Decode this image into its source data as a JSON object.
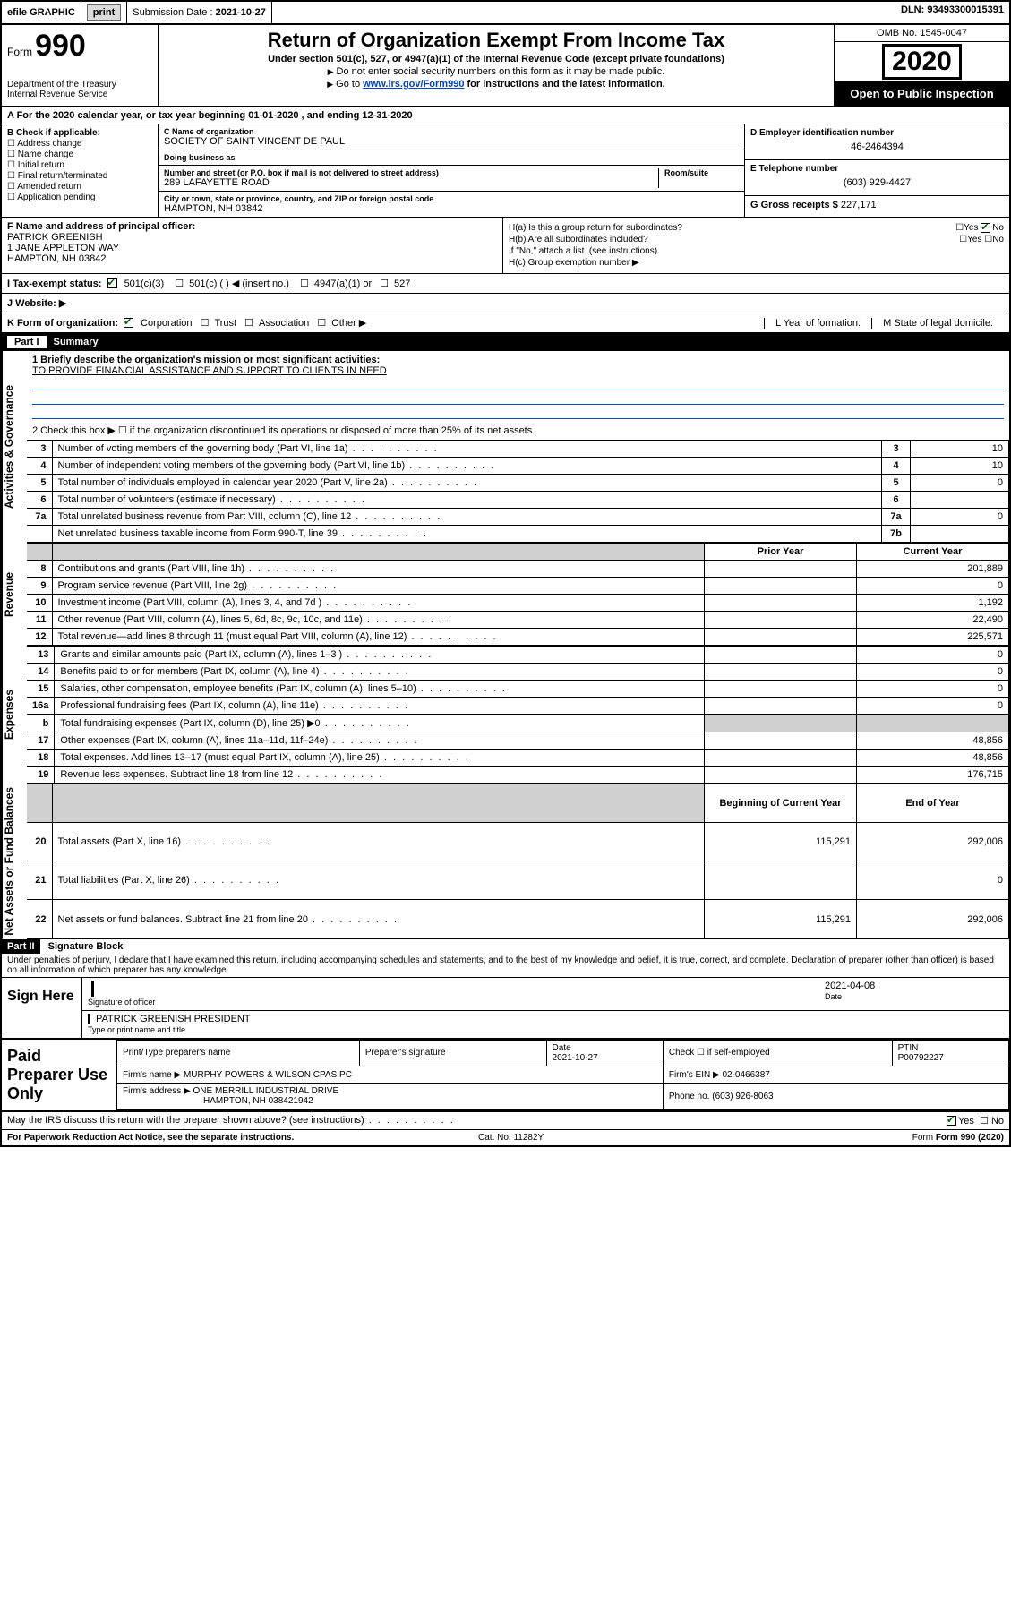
{
  "topbar": {
    "efile": "efile GRAPHIC",
    "print": "print",
    "subdate_lbl": "Submission Date :",
    "subdate": "2021-10-27",
    "dln_lbl": "DLN:",
    "dln": "93493300015391"
  },
  "header": {
    "form_word": "Form",
    "form_num": "990",
    "dept": "Department of the Treasury",
    "irs": "Internal Revenue Service",
    "title": "Return of Organization Exempt From Income Tax",
    "sub": "Under section 501(c), 527, or 4947(a)(1) of the Internal Revenue Code (except private foundations)",
    "note1": "Do not enter social security numbers on this form as it may be made public.",
    "note2_pre": "Go to ",
    "note2_link": "www.irs.gov/Form990",
    "note2_post": " for instructions and the latest information.",
    "omb": "OMB No. 1545-0047",
    "year": "2020",
    "open": "Open to Public Inspection"
  },
  "period": {
    "text_a": "A For the 2020 calendar year, or tax year beginning ",
    "begin": "01-01-2020",
    "text_b": " , and ending ",
    "end": "12-31-2020"
  },
  "sectionB": {
    "label": "B Check if applicable:",
    "items": [
      "Address change",
      "Name change",
      "Initial return",
      "Final return/terminated",
      "Amended return",
      "Application pending"
    ]
  },
  "sectionC": {
    "name_lbl": "C Name of organization",
    "name": "SOCIETY OF SAINT VINCENT DE PAUL",
    "dba_lbl": "Doing business as",
    "dba": "",
    "addr_lbl": "Number and street (or P.O. box if mail is not delivered to street address)",
    "room_lbl": "Room/suite",
    "addr": "289 LAFAYETTE ROAD",
    "city_lbl": "City or town, state or province, country, and ZIP or foreign postal code",
    "city": "HAMPTON, NH  03842"
  },
  "sectionD": {
    "ein_lbl": "D Employer identification number",
    "ein": "46-2464394",
    "tel_lbl": "E Telephone number",
    "tel": "(603) 929-4427",
    "gross_lbl": "G Gross receipts $",
    "gross": "227,171"
  },
  "sectionF": {
    "lbl": "F Name and address of principal officer:",
    "name": "PATRICK GREENISH",
    "addr1": "1 JANE APPLETON WAY",
    "addr2": "HAMPTON, NH  03842"
  },
  "sectionH": {
    "a": "H(a)  Is this a group return for subordinates?",
    "b": "H(b)  Are all subordinates included?",
    "bnote": "If \"No,\" attach a list. (see instructions)",
    "c": "H(c)  Group exemption number ▶",
    "yes": "Yes",
    "no": "No"
  },
  "taxrow": {
    "lbl": "I    Tax-exempt status:",
    "a": "501(c)(3)",
    "b": "501(c) (   ) ◀ (insert no.)",
    "c": "4947(a)(1) or",
    "d": "527"
  },
  "web": {
    "lbl": "J    Website: ▶"
  },
  "korg": {
    "lbl": "K Form of organization:",
    "a": "Corporation",
    "b": "Trust",
    "c": "Association",
    "d": "Other ▶",
    "L": "L Year of formation:",
    "M": "M State of legal domicile:"
  },
  "partI": {
    "hdr_pill": "Part I",
    "hdr_txt": "Summary",
    "q1": "1  Briefly describe the organization's mission or most significant activities:",
    "q1_ans": "TO PROVIDE FINANCIAL ASSISTANCE AND SUPPORT TO CLIENTS IN NEED",
    "q2": "2   Check this box ▶ ☐ if the organization discontinued its operations or disposed of more than 25% of its net assets.",
    "rows_gov": [
      {
        "n": "3",
        "t": "Number of voting members of the governing body (Part VI, line 1a)",
        "box": "3",
        "v": "10"
      },
      {
        "n": "4",
        "t": "Number of independent voting members of the governing body (Part VI, line 1b)",
        "box": "4",
        "v": "10"
      },
      {
        "n": "5",
        "t": "Total number of individuals employed in calendar year 2020 (Part V, line 2a)",
        "box": "5",
        "v": "0"
      },
      {
        "n": "6",
        "t": "Total number of volunteers (estimate if necessary)",
        "box": "6",
        "v": ""
      },
      {
        "n": "7a",
        "t": "Total unrelated business revenue from Part VIII, column (C), line 12",
        "box": "7a",
        "v": "0"
      },
      {
        "n": "",
        "t": "Net unrelated business taxable income from Form 990-T, line 39",
        "box": "7b",
        "v": ""
      }
    ],
    "col_prior": "Prior Year",
    "col_curr": "Current Year",
    "rows_rev": [
      {
        "n": "8",
        "t": "Contributions and grants (Part VIII, line 1h)",
        "p": "",
        "c": "201,889"
      },
      {
        "n": "9",
        "t": "Program service revenue (Part VIII, line 2g)",
        "p": "",
        "c": "0"
      },
      {
        "n": "10",
        "t": "Investment income (Part VIII, column (A), lines 3, 4, and 7d )",
        "p": "",
        "c": "1,192"
      },
      {
        "n": "11",
        "t": "Other revenue (Part VIII, column (A), lines 5, 6d, 8c, 9c, 10c, and 11e)",
        "p": "",
        "c": "22,490"
      },
      {
        "n": "12",
        "t": "Total revenue—add lines 8 through 11 (must equal Part VIII, column (A), line 12)",
        "p": "",
        "c": "225,571"
      }
    ],
    "rows_exp": [
      {
        "n": "13",
        "t": "Grants and similar amounts paid (Part IX, column (A), lines 1–3 )",
        "p": "",
        "c": "0"
      },
      {
        "n": "14",
        "t": "Benefits paid to or for members (Part IX, column (A), line 4)",
        "p": "",
        "c": "0"
      },
      {
        "n": "15",
        "t": "Salaries, other compensation, employee benefits (Part IX, column (A), lines 5–10)",
        "p": "",
        "c": "0"
      },
      {
        "n": "16a",
        "t": "Professional fundraising fees (Part IX, column (A), line 11e)",
        "p": "",
        "c": "0"
      },
      {
        "n": "b",
        "t": "Total fundraising expenses (Part IX, column (D), line 25) ▶0",
        "p": "shade",
        "c": "shade"
      },
      {
        "n": "17",
        "t": "Other expenses (Part IX, column (A), lines 11a–11d, 11f–24e)",
        "p": "",
        "c": "48,856"
      },
      {
        "n": "18",
        "t": "Total expenses. Add lines 13–17 (must equal Part IX, column (A), line 25)",
        "p": "",
        "c": "48,856"
      },
      {
        "n": "19",
        "t": "Revenue less expenses. Subtract line 18 from line 12",
        "p": "",
        "c": "176,715"
      }
    ],
    "col_boy": "Beginning of Current Year",
    "col_eoy": "End of Year",
    "rows_net": [
      {
        "n": "20",
        "t": "Total assets (Part X, line 16)",
        "p": "115,291",
        "c": "292,006"
      },
      {
        "n": "21",
        "t": "Total liabilities (Part X, line 26)",
        "p": "",
        "c": "0"
      },
      {
        "n": "22",
        "t": "Net assets or fund balances. Subtract line 21 from line 20",
        "p": "115,291",
        "c": "292,006"
      }
    ],
    "vlab_gov": "Activities & Governance",
    "vlab_rev": "Revenue",
    "vlab_exp": "Expenses",
    "vlab_net": "Net Assets or Fund Balances"
  },
  "partII": {
    "pill": "Part II",
    "title": "Signature Block",
    "decl": "Under penalties of perjury, I declare that I have examined this return, including accompanying schedules and statements, and to the best of my knowledge and belief, it is true, correct, and complete. Declaration of preparer (other than officer) is based on all information of which preparer has any knowledge."
  },
  "sign": {
    "lab": "Sign Here",
    "sig_lbl": "Signature of officer",
    "date_lbl": "Date",
    "date": "2021-04-08",
    "name": "PATRICK GREENISH  PRESIDENT",
    "name_lbl": "Type or print name and title"
  },
  "paid": {
    "lab": "Paid Preparer Use Only",
    "h1": "Print/Type preparer's name",
    "h2": "Preparer's signature",
    "h3_l": "Date",
    "h3": "2021-10-27",
    "h4": "Check ☐ if self-employed",
    "h5_l": "PTIN",
    "h5": "P00792227",
    "firm_lbl": "Firm's name     ▶",
    "firm": "MURPHY POWERS & WILSON CPAS PC",
    "ein_lbl": "Firm's EIN ▶",
    "ein": "02-0466387",
    "addr_lbl": "Firm's address ▶",
    "addr1": "ONE MERRILL INDUSTRIAL DRIVE",
    "addr2": "HAMPTON, NH  038421942",
    "phone_lbl": "Phone no.",
    "phone": "(603) 926-8063"
  },
  "discuss": {
    "q": "May the IRS discuss this return with the preparer shown above? (see instructions)",
    "yes": "Yes",
    "no": "No"
  },
  "footer": {
    "l": "For Paperwork Reduction Act Notice, see the separate instructions.",
    "m": "Cat. No. 11282Y",
    "r": "Form 990 (2020)"
  },
  "colors": {
    "link": "#0040c8",
    "underline": "#0050b8",
    "check": "#006000"
  }
}
